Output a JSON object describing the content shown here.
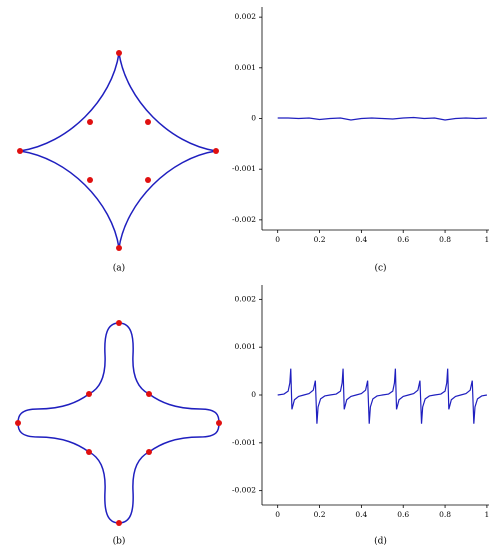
{
  "figures": [
    {
      "caption": "(a)"
    },
    {
      "caption": "(b)"
    }
  ],
  "chart_data": [
    {
      "type": "line",
      "caption": "(c)",
      "x": [
        0,
        0.05,
        0.1,
        0.15,
        0.2,
        0.25,
        0.3,
        0.35,
        0.4,
        0.45,
        0.5,
        0.55,
        0.6,
        0.65,
        0.7,
        0.75,
        0.8,
        0.85,
        0.9,
        0.95,
        1
      ],
      "series": [
        {
          "color": "#1f1fbf",
          "values": [
            1e-05,
            1e-05,
            0,
            1e-05,
            -2e-05,
            0,
            1e-05,
            -3e-05,
            0,
            1e-05,
            0,
            -1e-05,
            1e-05,
            2e-05,
            0,
            1e-05,
            -3e-05,
            0,
            1e-05,
            0,
            1e-05
          ]
        }
      ],
      "xlim": [
        -0.075,
        1.01
      ],
      "ylim": [
        -0.0022,
        0.0022
      ],
      "xticks": [
        0,
        0.2,
        0.4,
        0.6,
        0.8,
        1
      ],
      "yticks": [
        0.002,
        0.001,
        0,
        -0.001,
        -0.002
      ]
    },
    {
      "type": "line",
      "caption": "(d)",
      "x": [
        0,
        0.03,
        0.05,
        0.058,
        0.0625,
        0.068,
        0.08,
        0.1,
        0.125,
        0.15,
        0.17,
        0.18,
        0.1875,
        0.193,
        0.205,
        0.225,
        0.25,
        0.28,
        0.3,
        0.308,
        0.3125,
        0.318,
        0.33,
        0.35,
        0.375,
        0.4,
        0.42,
        0.43,
        0.4375,
        0.443,
        0.455,
        0.475,
        0.5,
        0.53,
        0.55,
        0.558,
        0.5625,
        0.568,
        0.58,
        0.6,
        0.625,
        0.65,
        0.67,
        0.68,
        0.6875,
        0.693,
        0.705,
        0.725,
        0.75,
        0.78,
        0.8,
        0.808,
        0.8125,
        0.818,
        0.83,
        0.85,
        0.875,
        0.9,
        0.92,
        0.93,
        0.9375,
        0.943,
        0.955,
        0.975,
        1
      ],
      "series": [
        {
          "color": "#1f1fbf",
          "values": [
            0,
            2e-05,
            8e-05,
            0.00025,
            0.00055,
            -0.0003,
            -0.0001,
            -3e-05,
            0,
            3e-05,
            0.0001,
            0.0003,
            -0.0006,
            -0.00025,
            -8e-05,
            -2e-05,
            0,
            2e-05,
            8e-05,
            0.00025,
            0.00055,
            -0.0003,
            -0.0001,
            -3e-05,
            0,
            3e-05,
            0.0001,
            0.0003,
            -0.0006,
            -0.00025,
            -8e-05,
            -2e-05,
            0,
            2e-05,
            8e-05,
            0.00025,
            0.00055,
            -0.0003,
            -0.0001,
            -3e-05,
            0,
            3e-05,
            0.0001,
            0.0003,
            -0.0006,
            -0.00025,
            -8e-05,
            -2e-05,
            0,
            2e-05,
            8e-05,
            0.00025,
            0.00055,
            -0.0003,
            -0.0001,
            -3e-05,
            0,
            3e-05,
            0.0001,
            0.0003,
            -0.0006,
            -0.00025,
            -8e-05,
            -2e-05,
            0
          ]
        }
      ],
      "xlim": [
        -0.075,
        1.01
      ],
      "ylim": [
        -0.0023,
        0.0023
      ],
      "xticks": [
        0,
        0.2,
        0.4,
        0.6,
        0.8,
        1
      ],
      "yticks": [
        0.002,
        0.001,
        0,
        -0.001,
        -0.002
      ]
    }
  ]
}
